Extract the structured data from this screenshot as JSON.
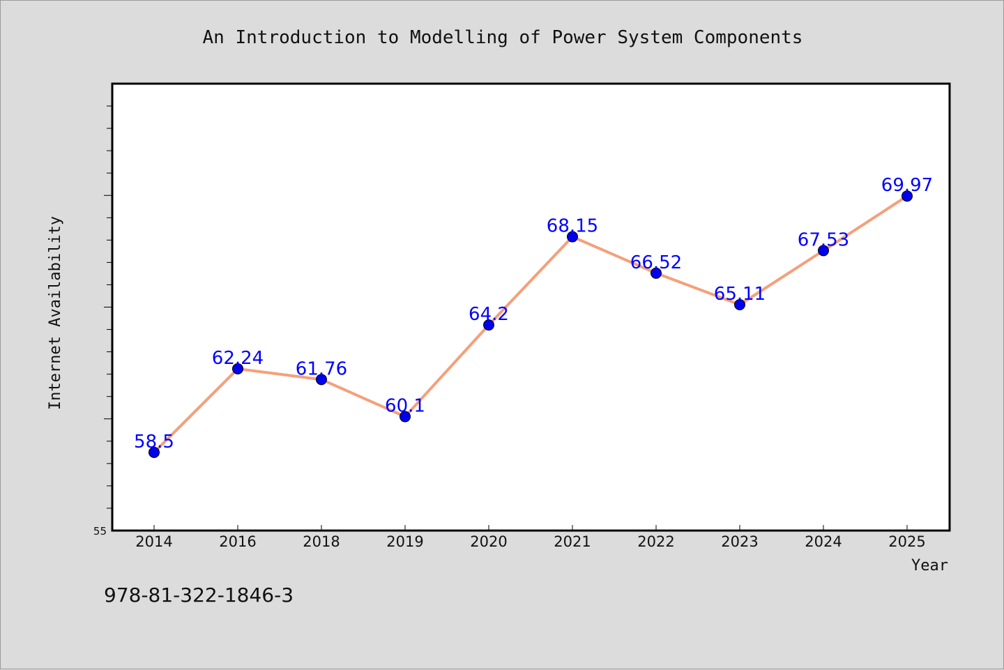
{
  "colors": {
    "background": "#dcdcdc",
    "plot_background": "#ffffff",
    "line": "#f4a07a",
    "marker": "#0000ee",
    "label": "#0000ff"
  },
  "footer": {
    "isbn": "978-81-322-1846-3"
  },
  "chart_data": {
    "type": "line",
    "title": "An Introduction to Modelling of Power System Components",
    "xlabel": "Year",
    "ylabel": "Internet Availability",
    "categories": [
      "2014",
      "2016",
      "2018",
      "2019",
      "2020",
      "2021",
      "2022",
      "2023",
      "2024",
      "2025"
    ],
    "series": [
      {
        "values": [
          58.5,
          62.24,
          61.76,
          60.1,
          64.2,
          68.15,
          66.52,
          65.11,
          67.53,
          69.97
        ]
      }
    ],
    "data_labels": [
      "58.5",
      "62.24",
      "61.76",
      "60.1",
      "64.2",
      "68.15",
      "66.52",
      "65.11",
      "67.53",
      "69.97"
    ],
    "ylim": [
      55,
      75
    ],
    "yticks_labeled": [
      "55"
    ],
    "grid": false,
    "legend": "none"
  }
}
